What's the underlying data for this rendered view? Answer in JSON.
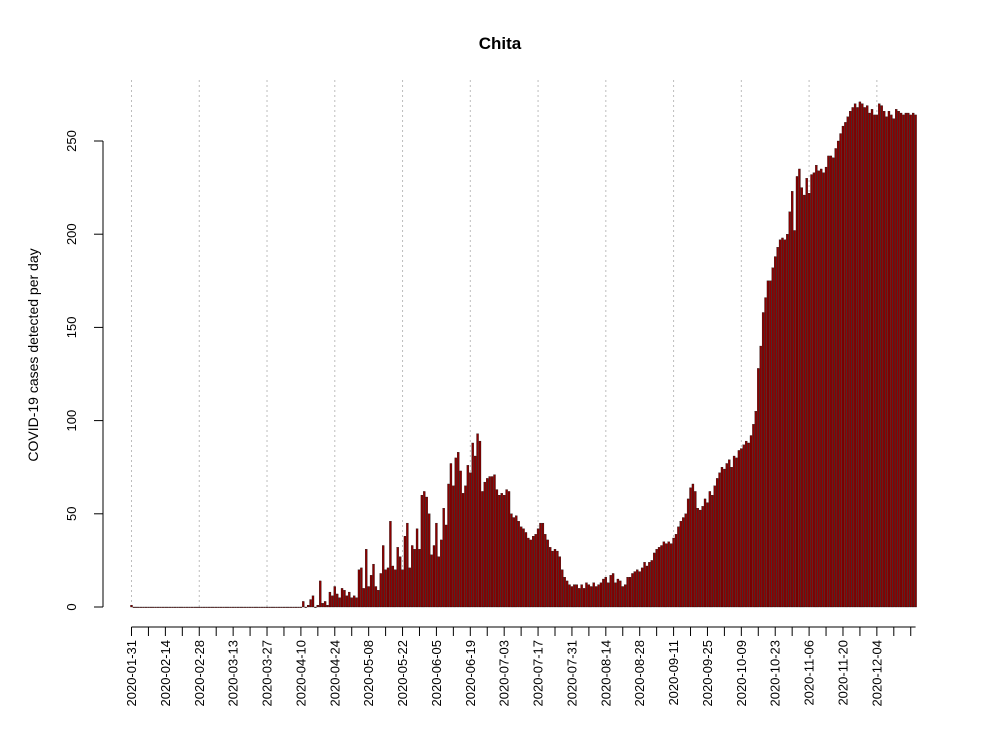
{
  "chart_data": {
    "type": "bar",
    "title": "Chita",
    "ylabel": "COVID-19 cases detected per day",
    "xlabel": "",
    "ylim": [
      0,
      275
    ],
    "yticks": [
      0,
      50,
      100,
      150,
      200,
      250
    ],
    "start_date": "2020-01-31",
    "xtick_labels": [
      "2020-01-31",
      "2020-02-14",
      "2020-02-28",
      "2020-03-13",
      "2020-03-27",
      "2020-04-10",
      "2020-04-24",
      "2020-05-08",
      "2020-05-22",
      "2020-06-05",
      "2020-06-19",
      "2020-07-03",
      "2020-07-17",
      "2020-07-31",
      "2020-08-14",
      "2020-08-28",
      "2020-09-11",
      "2020-09-25",
      "2020-10-09",
      "2020-10-23",
      "2020-11-06",
      "2020-11-20",
      "2020-12-04"
    ],
    "gridline_dates": [
      "2020-01-31",
      "2020-02-28",
      "2020-03-27",
      "2020-04-24",
      "2020-05-22",
      "2020-06-19",
      "2020-07-17",
      "2020-08-14",
      "2020-09-11",
      "2020-10-09",
      "2020-11-06",
      "2020-12-04"
    ],
    "grid": "vertical dotted",
    "bar_color": "#8b0000",
    "bar_outline": "#000000",
    "values": [
      1,
      0,
      0,
      0,
      0,
      0,
      0,
      0,
      0,
      0,
      0,
      0,
      0,
      0,
      0,
      0,
      0,
      0,
      0,
      0,
      0,
      0,
      0,
      0,
      0,
      0,
      0,
      0,
      0,
      0,
      0,
      0,
      0,
      0,
      0,
      0,
      0,
      0,
      0,
      0,
      0,
      0,
      0,
      0,
      0,
      0,
      0,
      0,
      0,
      0,
      0,
      0,
      0,
      0,
      0,
      0,
      0,
      0,
      0,
      0,
      0,
      0,
      0,
      0,
      0,
      0,
      0,
      0,
      0,
      0,
      0,
      3,
      0,
      1,
      4,
      6,
      0,
      1,
      14,
      2,
      3,
      1,
      8,
      6,
      11,
      7,
      5,
      10,
      9,
      6,
      8,
      5,
      6,
      5,
      20,
      21,
      10,
      31,
      11,
      17,
      23,
      11,
      9,
      18,
      33,
      20,
      21,
      46,
      22,
      20,
      32,
      27,
      20,
      38,
      45,
      21,
      33,
      31,
      42,
      31,
      60,
      62,
      59,
      50,
      28,
      33,
      45,
      27,
      36,
      53,
      44,
      66,
      77,
      65,
      80,
      83,
      73,
      61,
      65,
      76,
      72,
      88,
      81,
      93,
      89,
      62,
      67,
      69,
      70,
      70,
      71,
      63,
      60,
      61,
      60,
      63,
      62,
      50,
      48,
      49,
      46,
      43,
      42,
      40,
      37,
      36,
      38,
      39,
      42,
      45,
      45,
      39,
      36,
      32,
      30,
      31,
      30,
      27,
      20,
      16,
      14,
      12,
      11,
      12,
      12,
      10,
      12,
      10,
      13,
      12,
      11,
      13,
      11,
      12,
      13,
      15,
      16,
      13,
      17,
      18,
      13,
      15,
      14,
      11,
      12,
      16,
      16,
      18,
      19,
      20,
      19,
      21,
      24,
      22,
      24,
      25,
      29,
      31,
      32,
      33,
      35,
      34,
      35,
      34,
      37,
      39,
      43,
      46,
      48,
      50,
      58,
      64,
      66,
      62,
      53,
      52,
      54,
      58,
      56,
      62,
      60,
      65,
      69,
      72,
      75,
      74,
      77,
      79,
      75,
      81,
      80,
      84,
      85,
      87,
      89,
      88,
      92,
      98,
      105,
      128,
      140,
      158,
      166,
      175,
      175,
      182,
      188,
      193,
      197,
      198,
      197,
      200,
      212,
      223,
      202,
      231,
      235,
      225,
      221,
      230,
      222,
      232,
      233,
      237,
      234,
      235,
      233,
      236,
      242,
      242,
      241,
      246,
      250,
      254,
      258,
      260,
      263,
      266,
      268,
      270,
      268,
      271,
      270,
      268,
      269,
      265,
      267,
      264,
      264,
      270,
      269,
      266,
      263,
      266,
      264,
      262,
      267,
      266,
      265,
      264,
      265,
      265,
      264,
      265,
      264
    ]
  }
}
